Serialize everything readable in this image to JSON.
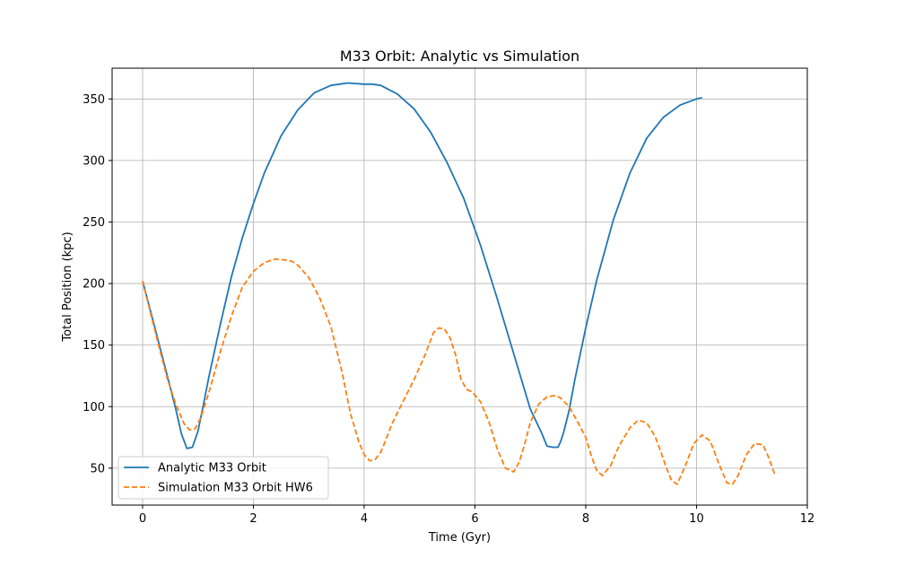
{
  "chart_data": {
    "type": "line",
    "title": "M33 Orbit: Analytic vs Simulation",
    "xlabel": "Time (Gyr)",
    "ylabel": "Total Position (kpc)",
    "xlim": [
      -0.55,
      12.0
    ],
    "ylim": [
      20,
      375
    ],
    "xticks": [
      0,
      2,
      4,
      6,
      8,
      10,
      12
    ],
    "yticks": [
      50,
      100,
      150,
      200,
      250,
      300,
      350
    ],
    "grid": true,
    "legend_position": "lower-left",
    "series": [
      {
        "name": "Analytic M33 Orbit",
        "color": "#1f77b4",
        "style": "solid",
        "x": [
          0.0,
          0.2,
          0.4,
          0.6,
          0.7,
          0.8,
          0.9,
          1.0,
          1.1,
          1.2,
          1.4,
          1.6,
          1.8,
          2.0,
          2.2,
          2.5,
          2.8,
          3.1,
          3.4,
          3.7,
          4.0,
          4.15,
          4.3,
          4.6,
          4.9,
          5.2,
          5.5,
          5.8,
          6.1,
          6.4,
          6.7,
          7.0,
          7.2,
          7.3,
          7.4,
          7.5,
          7.55,
          7.6,
          7.7,
          7.8,
          8.0,
          8.2,
          8.5,
          8.8,
          9.1,
          9.4,
          9.7,
          10.0,
          10.1
        ],
        "y": [
          202,
          168,
          133,
          98,
          78,
          66,
          67,
          80,
          102,
          125,
          166,
          205,
          237,
          265,
          290,
          320,
          341,
          355,
          361,
          363,
          362,
          362,
          361,
          354,
          342,
          323,
          298,
          269,
          231,
          188,
          143,
          98,
          79,
          68,
          67,
          67,
          72,
          79,
          97,
          121,
          164,
          203,
          252,
          290,
          318,
          335,
          345,
          350,
          351
        ]
      },
      {
        "name": "Simulation M33 Orbit HW6",
        "color": "#ff7f0e",
        "style": "dashed",
        "x": [
          0.0,
          0.15,
          0.3,
          0.45,
          0.6,
          0.75,
          0.85,
          0.95,
          1.05,
          1.2,
          1.4,
          1.6,
          1.8,
          2.0,
          2.2,
          2.4,
          2.6,
          2.7,
          2.8,
          3.0,
          3.2,
          3.4,
          3.6,
          3.75,
          3.9,
          4.0,
          4.1,
          4.2,
          4.3,
          4.4,
          4.5,
          4.7,
          4.9,
          5.1,
          5.25,
          5.35,
          5.45,
          5.55,
          5.65,
          5.75,
          5.85,
          5.95,
          6.1,
          6.25,
          6.4,
          6.55,
          6.7,
          6.8,
          6.9,
          7.0,
          7.15,
          7.3,
          7.45,
          7.55,
          7.7,
          7.85,
          8.0,
          8.1,
          8.2,
          8.3,
          8.45,
          8.6,
          8.8,
          8.95,
          9.1,
          9.25,
          9.35,
          9.45,
          9.55,
          9.65,
          9.8,
          9.95,
          10.1,
          10.25,
          10.4,
          10.55,
          10.65,
          10.75,
          10.9,
          11.05,
          11.2,
          11.3,
          11.42
        ],
        "y": [
          202,
          175,
          148,
          122,
          102,
          86,
          81,
          82,
          91,
          112,
          144,
          173,
          197,
          210,
          217,
          220,
          219,
          218,
          215,
          205,
          188,
          165,
          128,
          95,
          72,
          61,
          56,
          57,
          63,
          74,
          86,
          104,
          122,
          142,
          160,
          164,
          163,
          156,
          142,
          122,
          114,
          112,
          104,
          88,
          66,
          50,
          47,
          55,
          70,
          87,
          102,
          108,
          109,
          107,
          100,
          88,
          75,
          60,
          48,
          44,
          52,
          68,
          83,
          89,
          87,
          76,
          64,
          51,
          40,
          37,
          52,
          70,
          77,
          72,
          54,
          38,
          37,
          44,
          61,
          70,
          69,
          59,
          44
        ]
      }
    ]
  }
}
